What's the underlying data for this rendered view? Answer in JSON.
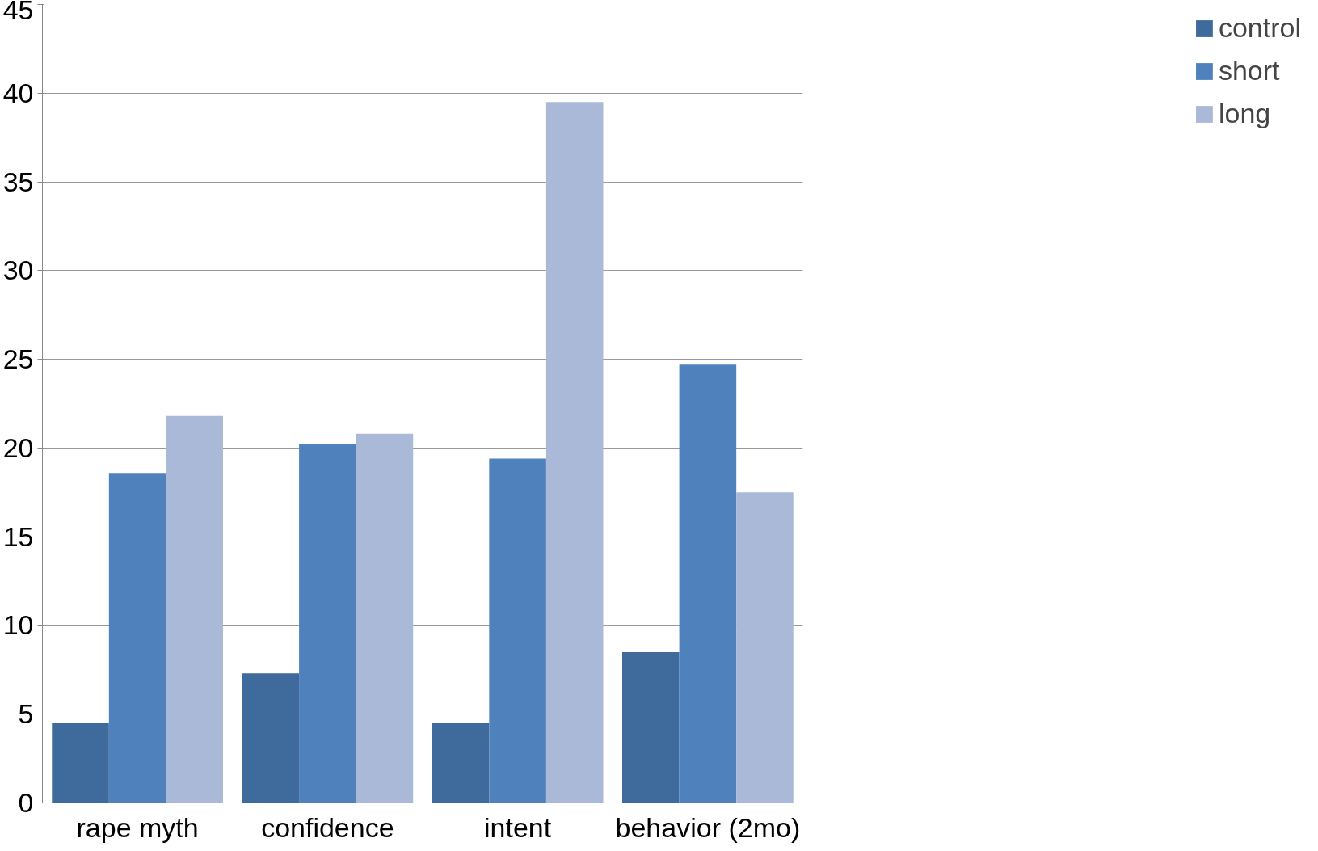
{
  "chart_data": {
    "type": "bar",
    "categories": [
      "rape myth",
      "confidence",
      "intent",
      "behavior (2mo)"
    ],
    "series": [
      {
        "name": "control",
        "color": "#3f6a9c",
        "values": [
          4.5,
          7.3,
          4.5,
          8.5
        ]
      },
      {
        "name": "short",
        "color": "#4f81bd",
        "values": [
          18.6,
          20.2,
          19.4,
          24.7
        ]
      },
      {
        "name": "long",
        "color": "#aab9d7",
        "values": [
          21.8,
          20.8,
          39.5,
          17.5
        ]
      }
    ],
    "ylim": [
      0,
      45
    ],
    "yticks": [
      0,
      5,
      10,
      15,
      20,
      25,
      30,
      35,
      40,
      45
    ],
    "grid": "y",
    "legend": "right"
  }
}
